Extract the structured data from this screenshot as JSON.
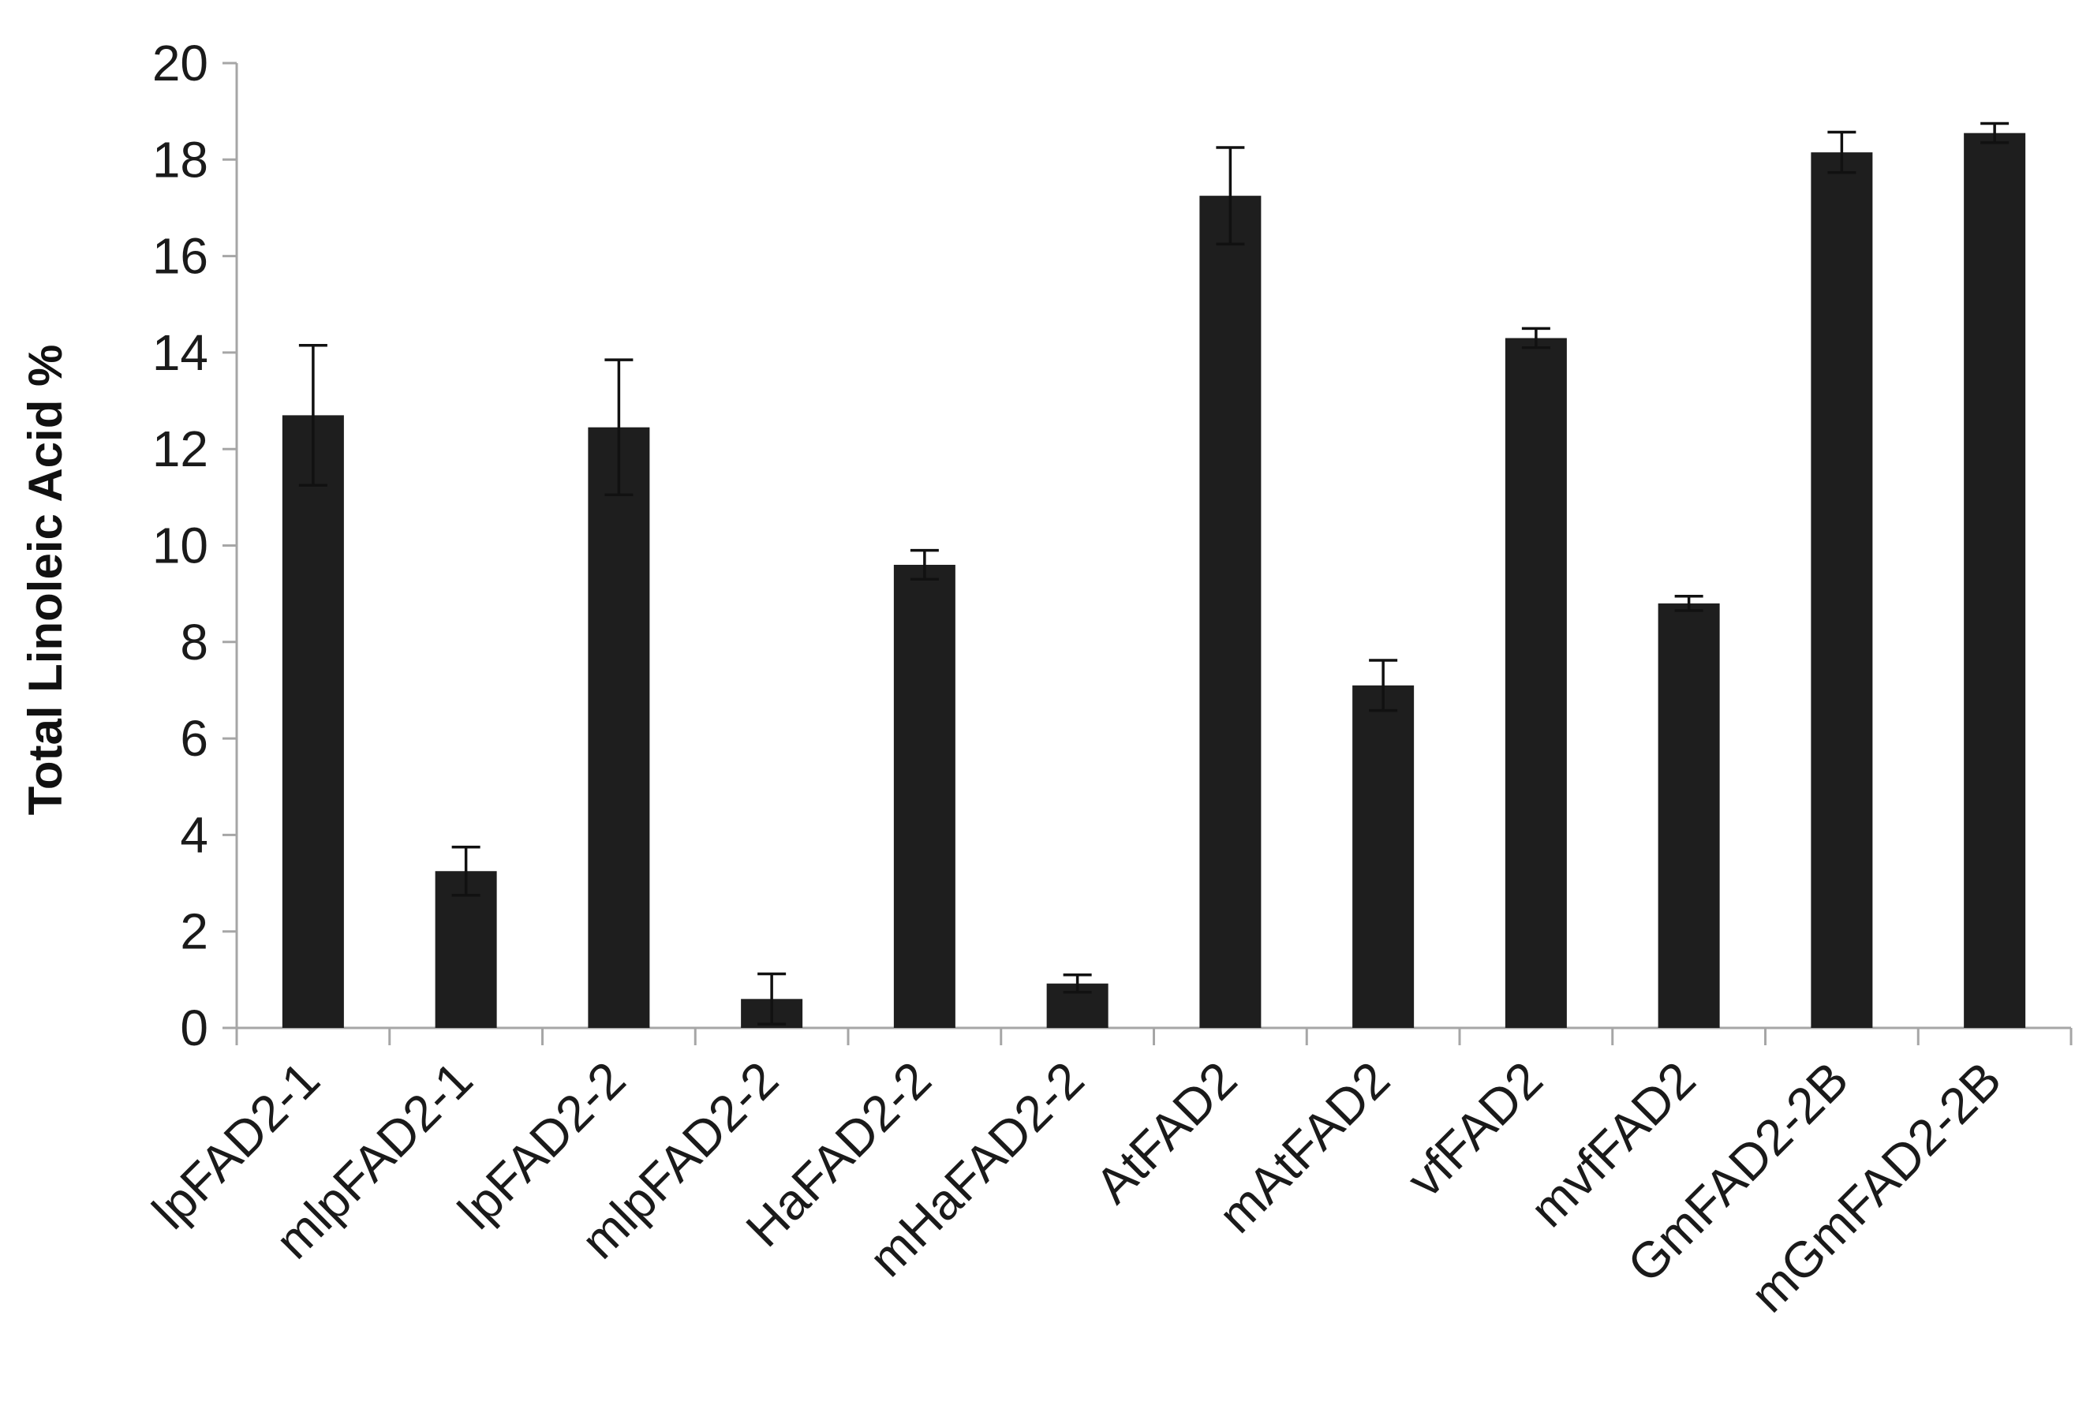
{
  "chart_data": {
    "type": "bar",
    "title": "",
    "xlabel": "",
    "ylabel": "Total Linoleic Acid %",
    "ylim": [
      0,
      20
    ],
    "yticks": [
      0,
      2,
      4,
      6,
      8,
      10,
      12,
      14,
      16,
      18,
      20
    ],
    "categories": [
      "lpFAD2-1",
      "mlpFAD2-1",
      "lpFAD2-2",
      "mlpFAD2-2",
      "HaFAD2-2",
      "mHaFAD2-2",
      "AtFAD2",
      "mAtFAD2",
      "vfFAD2",
      "mvfFAD2",
      "GmFAD2-2B",
      "mGmFAD2-2B"
    ],
    "values": [
      12.7,
      3.25,
      12.45,
      0.6,
      9.6,
      0.92,
      17.25,
      7.1,
      14.3,
      8.8,
      18.15,
      18.55
    ],
    "errors": [
      1.45,
      0.5,
      1.4,
      0.52,
      0.3,
      0.18,
      1.0,
      0.52,
      0.2,
      0.15,
      0.42,
      0.2
    ],
    "bar_color": "#1e1e1e",
    "grid": false,
    "legend": "none"
  }
}
